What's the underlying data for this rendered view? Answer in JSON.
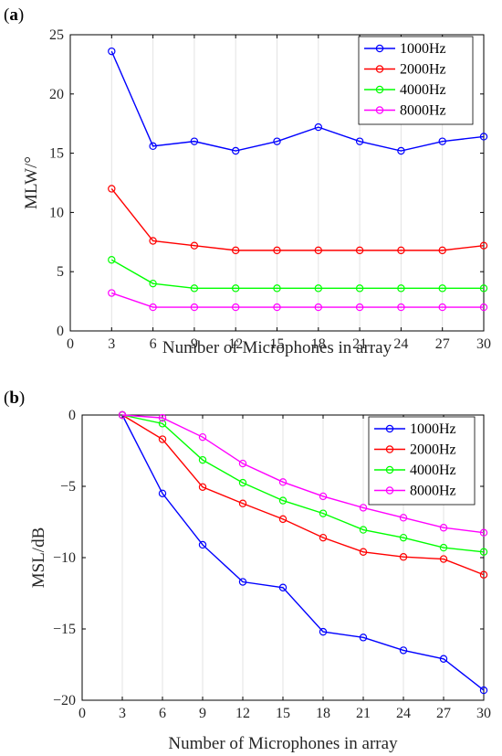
{
  "chart_data": [
    {
      "type": "line",
      "panel_label": "(a)",
      "xlabel": "Number of Microphones in array",
      "ylabel": "MLW/°",
      "xlim": [
        0,
        30
      ],
      "ylim": [
        0,
        25
      ],
      "xticks": [
        0,
        3,
        6,
        9,
        12,
        15,
        18,
        21,
        24,
        27,
        30
      ],
      "yticks": [
        0,
        5,
        10,
        15,
        20,
        25
      ],
      "ytick_labels": [
        "0",
        "5",
        "10",
        "15",
        "20",
        "25"
      ],
      "grid": "x",
      "legend_position": "top-right",
      "x": [
        3,
        6,
        9,
        12,
        15,
        18,
        21,
        24,
        27,
        30
      ],
      "series": [
        {
          "name": "1000Hz",
          "color": "#0000ff",
          "values": [
            23.6,
            15.6,
            16.0,
            15.2,
            16.0,
            17.2,
            16.0,
            15.2,
            16.0,
            16.4
          ]
        },
        {
          "name": "2000Hz",
          "color": "#ff0000",
          "values": [
            12.0,
            7.6,
            7.2,
            6.8,
            6.8,
            6.8,
            6.8,
            6.8,
            6.8,
            7.2
          ]
        },
        {
          "name": "4000Hz",
          "color": "#00ff00",
          "values": [
            6.0,
            4.0,
            3.6,
            3.6,
            3.6,
            3.6,
            3.6,
            3.6,
            3.6,
            3.6
          ]
        },
        {
          "name": "8000Hz",
          "color": "#ff00ff",
          "values": [
            3.2,
            2.0,
            2.0,
            2.0,
            2.0,
            2.0,
            2.0,
            2.0,
            2.0,
            2.0
          ]
        }
      ]
    },
    {
      "type": "line",
      "panel_label": "(b)",
      "xlabel": "Number of Microphones in array",
      "ylabel": "MSL/dB",
      "xlim": [
        0,
        30
      ],
      "ylim": [
        -20,
        0
      ],
      "xticks": [
        0,
        3,
        6,
        9,
        12,
        15,
        18,
        21,
        24,
        27,
        30
      ],
      "yticks": [
        -20,
        -15,
        -10,
        -5,
        0
      ],
      "ytick_labels": [
        "−20",
        "−15",
        "−10",
        "−5",
        "0"
      ],
      "grid": "x",
      "legend_position": "top-right",
      "x": [
        3,
        6,
        9,
        12,
        15,
        18,
        21,
        24,
        27,
        30
      ],
      "series": [
        {
          "name": "1000Hz",
          "color": "#0000ff",
          "values": [
            0,
            -5.5,
            -9.1,
            -11.7,
            -12.1,
            -15.2,
            -15.6,
            -16.5,
            -17.1,
            -19.3
          ]
        },
        {
          "name": "2000Hz",
          "color": "#ff0000",
          "values": [
            0,
            -1.7,
            -5.05,
            -6.2,
            -7.3,
            -8.6,
            -9.6,
            -9.95,
            -10.1,
            -11.2
          ]
        },
        {
          "name": "4000Hz",
          "color": "#00ff00",
          "values": [
            0,
            -0.6,
            -3.15,
            -4.75,
            -6.0,
            -6.9,
            -8.05,
            -8.6,
            -9.3,
            -9.6
          ]
        },
        {
          "name": "8000Hz",
          "color": "#ff00ff",
          "values": [
            0,
            -0.2,
            -1.55,
            -3.4,
            -4.7,
            -5.7,
            -6.5,
            -7.2,
            -7.9,
            -8.25
          ]
        }
      ]
    }
  ]
}
